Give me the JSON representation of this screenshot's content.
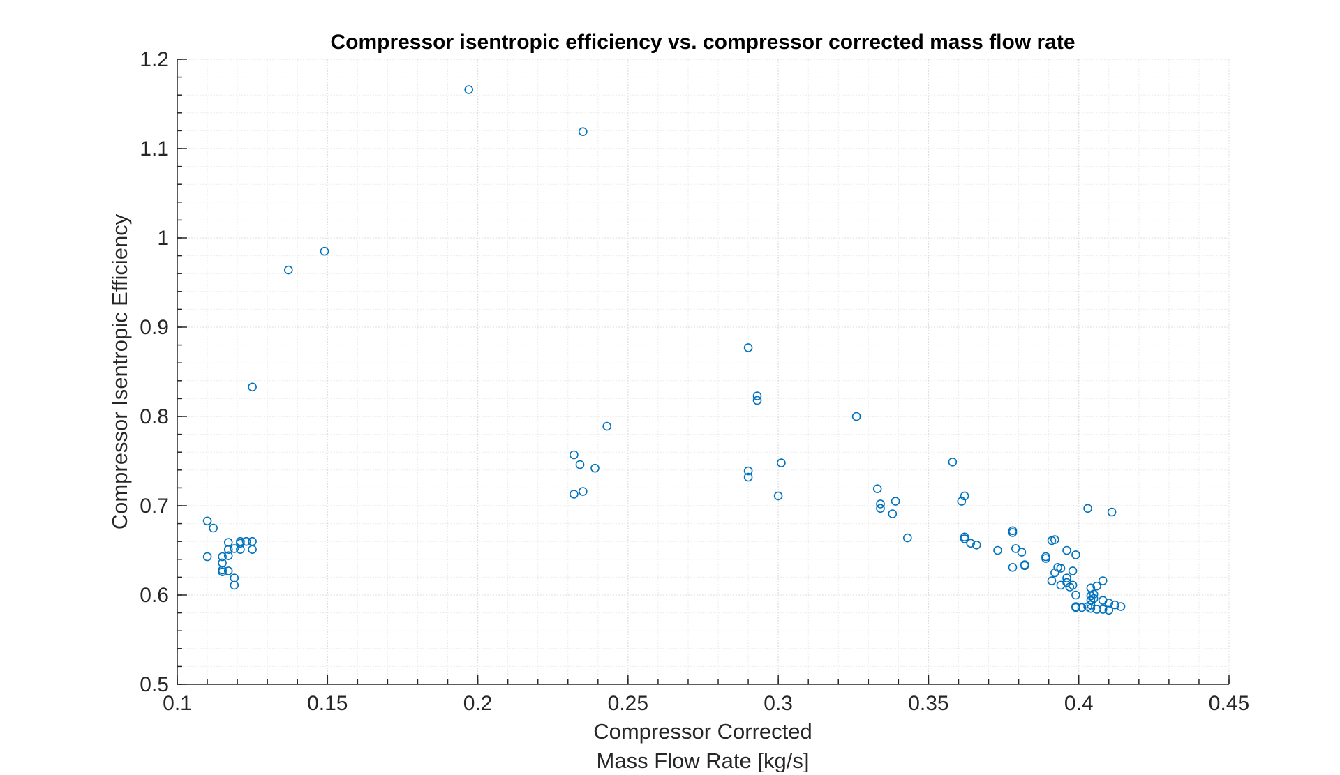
{
  "chart_data": {
    "type": "scatter",
    "title": "Compressor isentropic efficiency vs. compressor corrected mass flow rate",
    "xlabel_lines": [
      "Compressor Corrected",
      "Mass Flow Rate [kg/s]"
    ],
    "ylabel": "Compressor Isentropic Efficiency",
    "xlim": [
      0.1,
      0.45
    ],
    "ylim": [
      0.5,
      1.2
    ],
    "x_ticks": [
      0.1,
      0.15,
      0.2,
      0.25,
      0.3,
      0.35,
      0.4,
      0.45
    ],
    "x_tick_labels": [
      "0.1",
      "0.15",
      "0.2",
      "0.25",
      "0.3",
      "0.35",
      "0.4",
      "0.45"
    ],
    "y_ticks": [
      0.5,
      0.6,
      0.7,
      0.8,
      0.9,
      1.0,
      1.1,
      1.2
    ],
    "y_tick_labels": [
      "0.5",
      "0.6",
      "0.7",
      "0.8",
      "0.9",
      "1",
      "1.1",
      "1.2"
    ],
    "grid": "major and minor, dotted",
    "marker": "open circle",
    "marker_color": "#0072BD",
    "series": [
      {
        "points": [
          [
            0.11,
            0.683
          ],
          [
            0.112,
            0.675
          ],
          [
            0.11,
            0.643
          ],
          [
            0.115,
            0.643
          ],
          [
            0.115,
            0.636
          ],
          [
            0.115,
            0.628
          ],
          [
            0.115,
            0.626
          ],
          [
            0.117,
            0.659
          ],
          [
            0.117,
            0.651
          ],
          [
            0.117,
            0.644
          ],
          [
            0.117,
            0.627
          ],
          [
            0.119,
            0.652
          ],
          [
            0.119,
            0.619
          ],
          [
            0.119,
            0.611
          ],
          [
            0.121,
            0.66
          ],
          [
            0.121,
            0.658
          ],
          [
            0.121,
            0.651
          ],
          [
            0.123,
            0.66
          ],
          [
            0.125,
            0.66
          ],
          [
            0.125,
            0.651
          ],
          [
            0.125,
            0.833
          ],
          [
            0.137,
            0.964
          ],
          [
            0.149,
            0.985
          ],
          [
            0.197,
            1.166
          ],
          [
            0.235,
            1.119
          ],
          [
            0.232,
            0.757
          ],
          [
            0.234,
            0.746
          ],
          [
            0.232,
            0.713
          ],
          [
            0.235,
            0.716
          ],
          [
            0.239,
            0.742
          ],
          [
            0.243,
            0.789
          ],
          [
            0.29,
            0.877
          ],
          [
            0.293,
            0.823
          ],
          [
            0.293,
            0.818
          ],
          [
            0.29,
            0.739
          ],
          [
            0.29,
            0.732
          ],
          [
            0.301,
            0.748
          ],
          [
            0.3,
            0.711
          ],
          [
            0.326,
            0.8
          ],
          [
            0.333,
            0.719
          ],
          [
            0.334,
            0.702
          ],
          [
            0.334,
            0.697
          ],
          [
            0.339,
            0.705
          ],
          [
            0.338,
            0.691
          ],
          [
            0.343,
            0.664
          ],
          [
            0.358,
            0.749
          ],
          [
            0.362,
            0.711
          ],
          [
            0.361,
            0.705
          ],
          [
            0.362,
            0.665
          ],
          [
            0.362,
            0.663
          ],
          [
            0.364,
            0.658
          ],
          [
            0.366,
            0.656
          ],
          [
            0.373,
            0.65
          ],
          [
            0.378,
            0.672
          ],
          [
            0.378,
            0.67
          ],
          [
            0.379,
            0.652
          ],
          [
            0.378,
            0.631
          ],
          [
            0.381,
            0.648
          ],
          [
            0.382,
            0.634
          ],
          [
            0.382,
            0.633
          ],
          [
            0.389,
            0.643
          ],
          [
            0.389,
            0.641
          ],
          [
            0.391,
            0.661
          ],
          [
            0.392,
            0.662
          ],
          [
            0.391,
            0.616
          ],
          [
            0.392,
            0.625
          ],
          [
            0.393,
            0.631
          ],
          [
            0.394,
            0.611
          ],
          [
            0.394,
            0.63
          ],
          [
            0.396,
            0.65
          ],
          [
            0.396,
            0.619
          ],
          [
            0.396,
            0.614
          ],
          [
            0.397,
            0.609
          ],
          [
            0.398,
            0.611
          ],
          [
            0.398,
            0.627
          ],
          [
            0.399,
            0.645
          ],
          [
            0.399,
            0.6
          ],
          [
            0.399,
            0.587
          ],
          [
            0.399,
            0.586
          ],
          [
            0.401,
            0.586
          ],
          [
            0.403,
            0.697
          ],
          [
            0.403,
            0.587
          ],
          [
            0.404,
            0.608
          ],
          [
            0.404,
            0.599
          ],
          [
            0.404,
            0.594
          ],
          [
            0.404,
            0.589
          ],
          [
            0.404,
            0.585
          ],
          [
            0.405,
            0.601
          ],
          [
            0.405,
            0.596
          ],
          [
            0.406,
            0.61
          ],
          [
            0.406,
            0.584
          ],
          [
            0.408,
            0.616
          ],
          [
            0.408,
            0.594
          ],
          [
            0.408,
            0.584
          ],
          [
            0.41,
            0.591
          ],
          [
            0.41,
            0.583
          ],
          [
            0.411,
            0.693
          ],
          [
            0.412,
            0.589
          ],
          [
            0.414,
            0.587
          ]
        ]
      }
    ]
  }
}
